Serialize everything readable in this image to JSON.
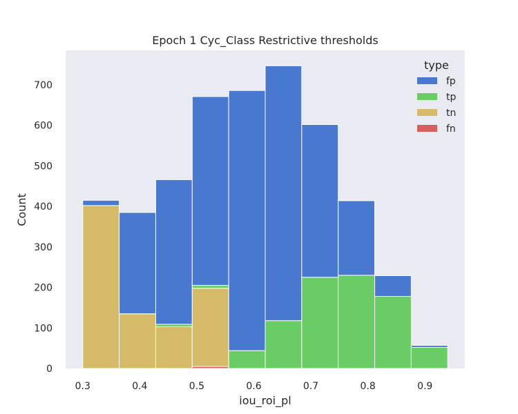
{
  "chart_data": {
    "type": "bar",
    "stacked": true,
    "title": "Epoch 1 Cyc_Class  Restrictive thresholds",
    "xlabel": "iou_roi_pl",
    "ylabel": "Count",
    "bins": [
      [
        0.3,
        0.364
      ],
      [
        0.364,
        0.428
      ],
      [
        0.428,
        0.492
      ],
      [
        0.492,
        0.556
      ],
      [
        0.556,
        0.62
      ],
      [
        0.62,
        0.684
      ],
      [
        0.684,
        0.748
      ],
      [
        0.748,
        0.812
      ],
      [
        0.812,
        0.876
      ],
      [
        0.876,
        0.94
      ]
    ],
    "series": [
      {
        "name": "fn",
        "color": "#d65f5f",
        "values": [
          0,
          0,
          0,
          5,
          0,
          0,
          0,
          0,
          0,
          0
        ]
      },
      {
        "name": "tn",
        "color": "#d5bb67",
        "values": [
          402,
          135,
          103,
          193,
          0,
          0,
          0,
          0,
          0,
          0
        ]
      },
      {
        "name": "tp",
        "color": "#6acc64",
        "values": [
          0,
          0,
          6,
          7,
          44,
          118,
          225,
          230,
          178,
          52
        ]
      },
      {
        "name": "fp",
        "color": "#4878d0",
        "values": [
          13,
          250,
          357,
          466,
          642,
          629,
          377,
          184,
          51,
          5
        ]
      }
    ],
    "xlim": [
      0.27,
      0.97
    ],
    "ylim": [
      0,
      785
    ],
    "xticks": [
      0.3,
      0.4,
      0.5,
      0.6,
      0.7,
      0.8,
      0.9
    ],
    "xtick_labels": [
      "0.3",
      "0.4",
      "0.5",
      "0.6",
      "0.7",
      "0.8",
      "0.9"
    ],
    "yticks": [
      0,
      100,
      200,
      300,
      400,
      500,
      600,
      700
    ],
    "ytick_labels": [
      "0",
      "100",
      "200",
      "300",
      "400",
      "500",
      "600",
      "700"
    ],
    "grid": false,
    "background": "#eaeaf2",
    "legend": {
      "title": "type",
      "placement": "top-right",
      "entries": [
        {
          "label": "fp",
          "color": "#4878d0"
        },
        {
          "label": "tp",
          "color": "#6acc64"
        },
        {
          "label": "tn",
          "color": "#d5bb67"
        },
        {
          "label": "fn",
          "color": "#d65f5f"
        }
      ]
    }
  }
}
